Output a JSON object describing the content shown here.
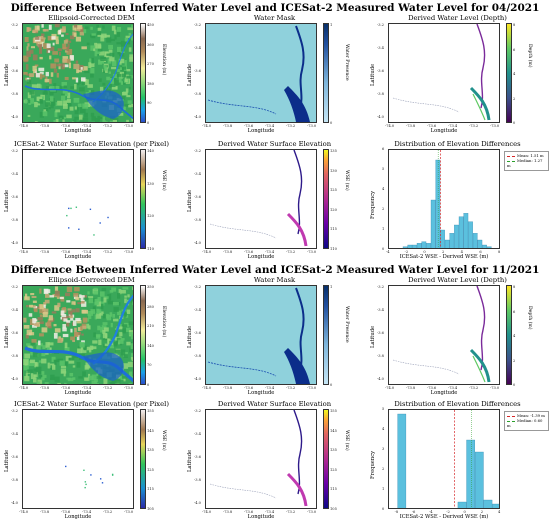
{
  "figure": {
    "title_top": "Difference Between Inferred Water Level and ICESat-2 Measured Water Level for 04/2021",
    "title_bottom": "Difference Between Inferred Water Level and ICESat-2 Measured Water Level for 11/2021"
  },
  "panel_titles": {
    "dem": "Ellipsoid-Corrected DEM",
    "mask": "Water Mask",
    "depth": "Derived Water Level (Depth)",
    "icesat": "ICESat-2 Water Surface Elevation (per Pixel)",
    "wse": "Derived Water Surface Elevation",
    "hist": "Distribution of Elevation Differences"
  },
  "axes": {
    "xlabel": "Longitude",
    "ylabel": "Latitude",
    "hist_xlabel": "ICESat-2 WSE - Derived WSE (m)",
    "hist_ylabel": "Frequency",
    "lon_ticks": [
      "-74.0",
      "-73.8",
      "-73.6",
      "-73.4",
      "-73.2",
      "-73.0"
    ],
    "lat_ticks": [
      "-3.2",
      "-3.4",
      "-3.6",
      "-3.8",
      "-4.0"
    ]
  },
  "colorbars": {
    "dem": "Elevation (m)",
    "mask": "Water Presence",
    "depth": "Depth (m)",
    "icesat": "WSE (m)",
    "wse": "WSE (m)"
  },
  "legends": {
    "top": {
      "mean": "Mean: 1.51 m",
      "median": "Median: 1.27 m"
    },
    "bottom": {
      "mean": "Mean: -1.39 m",
      "median": "Median: 0.60 m"
    }
  },
  "chart_data": [
    {
      "type": "heatmap",
      "title": "Ellipsoid-Corrected DEM",
      "xlabel": "Longitude",
      "ylabel": "Latitude",
      "xlim": [
        -74.0,
        -73.0
      ],
      "ylim": [
        -4.0,
        -3.0
      ],
      "colorbar_label": "Elevation (m)",
      "colorbar_range": [
        0,
        450
      ],
      "colormap": "terrain"
    },
    {
      "type": "heatmap",
      "title": "Water Mask",
      "xlabel": "Longitude",
      "ylabel": "Latitude",
      "xlim": [
        -74.0,
        -73.0
      ],
      "ylim": [
        -4.0,
        -3.0
      ],
      "colorbar_label": "Water Presence",
      "colorbar_range": [
        0,
        1
      ]
    },
    {
      "type": "heatmap",
      "title": "Derived Water Level (Depth)",
      "xlabel": "Longitude",
      "ylabel": "Latitude",
      "xlim": [
        -74.0,
        -73.0
      ],
      "ylim": [
        -4.0,
        -3.0
      ],
      "colorbar_label": "Depth (m)",
      "colorbar_range": [
        0,
        8
      ]
    },
    {
      "type": "heatmap",
      "title": "ICESat-2 Water Surface Elevation (per Pixel)",
      "xlabel": "Longitude",
      "ylabel": "Latitude",
      "xlim": [
        -74.0,
        -73.0
      ],
      "ylim": [
        -4.0,
        -3.0
      ],
      "colorbar_label": "WSE (m)",
      "colorbar_range": [
        110,
        140
      ]
    },
    {
      "type": "heatmap",
      "title": "Derived Water Surface Elevation",
      "xlabel": "Longitude",
      "ylabel": "Latitude",
      "xlim": [
        -74.0,
        -73.0
      ],
      "ylim": [
        -4.0,
        -3.0
      ],
      "colorbar_label": "WSE (m)",
      "colorbar_range": [
        110,
        135
      ]
    },
    {
      "type": "bar",
      "title": "Distribution of Elevation Differences",
      "xlabel": "ICESat-2 WSE - Derived WSE (m)",
      "ylabel": "Frequency",
      "xlim": [
        -4,
        8
      ],
      "ylim": [
        0,
        6
      ],
      "bins": [
        -2.5,
        -2.0,
        -1.5,
        -1.0,
        -0.5,
        0.0,
        0.5,
        1.0,
        1.5,
        2.0,
        2.5,
        3.0,
        3.5,
        4.0,
        4.5,
        5.0,
        5.5,
        6.0,
        6.5
      ],
      "values": [
        0.2,
        0.3,
        0.3,
        0.4,
        0.5,
        0.4,
        3.0,
        5.4,
        1.2,
        0.6,
        1.0,
        1.5,
        2.0,
        2.2,
        1.7,
        1.0,
        0.6,
        0.3,
        0.2
      ],
      "bar_color": "#5bc0de",
      "mean": 1.51,
      "median": 1.27
    },
    {
      "type": "heatmap",
      "title": "Ellipsoid-Corrected DEM",
      "xlabel": "Longitude",
      "ylabel": "Latitude",
      "xlim": [
        -74.0,
        -73.0
      ],
      "ylim": [
        -4.0,
        -3.0
      ],
      "colorbar_label": "Elevation (m)",
      "colorbar_range": [
        0,
        350
      ]
    },
    {
      "type": "heatmap",
      "title": "Water Mask",
      "xlabel": "Longitude",
      "ylabel": "Latitude",
      "xlim": [
        -74.0,
        -73.0
      ],
      "ylim": [
        -4.0,
        -3.0
      ],
      "colorbar_label": "Water Presence",
      "colorbar_range": [
        0,
        1
      ]
    },
    {
      "type": "heatmap",
      "title": "Derived Water Level (Depth)",
      "xlabel": "Longitude",
      "ylabel": "Latitude",
      "xlim": [
        -74.0,
        -73.0
      ],
      "ylim": [
        -4.0,
        -3.0
      ],
      "colorbar_label": "Depth (m)",
      "colorbar_range": [
        0,
        8
      ]
    },
    {
      "type": "heatmap",
      "title": "ICESat-2 Water Surface Elevation (per Pixel)",
      "xlabel": "Longitude",
      "ylabel": "Latitude",
      "xlim": [
        -74.0,
        -73.0
      ],
      "ylim": [
        -4.0,
        -3.0
      ],
      "colorbar_label": "WSE (m)",
      "colorbar_range": [
        105,
        155
      ]
    },
    {
      "type": "heatmap",
      "title": "Derived Water Surface Elevation",
      "xlabel": "Longitude",
      "ylabel": "Latitude",
      "xlim": [
        -74.0,
        -73.0
      ],
      "ylim": [
        -4.0,
        -3.0
      ],
      "colorbar_label": "WSE (m)",
      "colorbar_range": [
        105,
        155
      ]
    },
    {
      "type": "bar",
      "title": "Distribution of Elevation Differences",
      "xlabel": "ICESat-2 WSE - Derived WSE (m)",
      "ylabel": "Frequency",
      "xlim": [
        -9,
        4
      ],
      "ylim": [
        0,
        5
      ],
      "bins": [
        -8.0,
        -7.0,
        -6.0,
        -5.0,
        -4.0,
        -3.0,
        -2.0,
        -1.0,
        0.0,
        1.0,
        2.0,
        3.0
      ],
      "values": [
        4.8,
        0,
        0,
        0,
        0,
        0,
        0,
        0.4,
        3.5,
        2.9,
        0.5,
        0.3
      ],
      "bar_color": "#5bc0de",
      "mean": -1.39,
      "median": 0.6
    }
  ]
}
